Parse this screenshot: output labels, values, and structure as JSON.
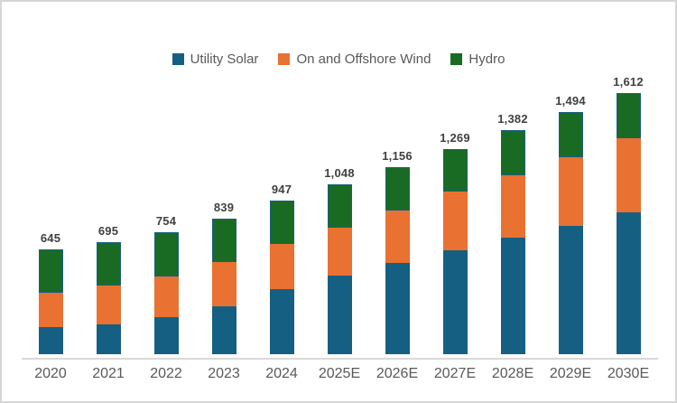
{
  "frame": {
    "background": "#ffffff",
    "border_color": "#d6d6d6"
  },
  "legend": {
    "position": "top-center",
    "items": [
      {
        "label": "Utility Solar",
        "color": "#156082"
      },
      {
        "label": "On and Offshore Wind",
        "color": "#E97132"
      },
      {
        "label": "Hydro",
        "color": "#196B24"
      }
    ]
  },
  "chart_data": {
    "type": "bar",
    "stacked": true,
    "title": "",
    "xlabel": "",
    "ylabel": "",
    "gridlines": false,
    "legend_position": "top",
    "ylim": [
      0,
      1700
    ],
    "axis_line_color": "#D9D9D9",
    "total_label_color": "#404040",
    "tick_label_color": "#595959",
    "categories": [
      "2020",
      "2021",
      "2022",
      "2023",
      "2024",
      "2025E",
      "2026E",
      "2027E",
      "2028E",
      "2029E",
      "2030E"
    ],
    "series": [
      {
        "name": "Utility Solar",
        "color": "#156082",
        "values": [
          169,
          186,
          231,
          297,
          402,
          486,
          563,
          642,
          722,
          795,
          874
        ]
      },
      {
        "name": "On and Offshore Wind",
        "color": "#E97132",
        "values": [
          209,
          239,
          248,
          270,
          276,
          294,
          326,
          365,
          385,
          421,
          458
        ]
      },
      {
        "name": "Hydro",
        "color": "#196B24",
        "border_color": "#156082",
        "values": [
          267,
          270,
          275,
          272,
          269,
          268,
          267,
          262,
          275,
          278,
          280
        ]
      }
    ],
    "totals": [
      645,
      695,
      754,
      839,
      947,
      1048,
      1156,
      1269,
      1382,
      1494,
      1612
    ],
    "total_labels": [
      "645",
      "695",
      "754",
      "839",
      "947",
      "1,048",
      "1,156",
      "1,269",
      "1,382",
      "1,494",
      "1,612"
    ]
  }
}
